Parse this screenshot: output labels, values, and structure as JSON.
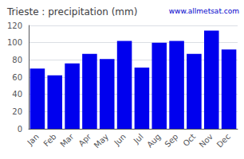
{
  "chart_data": {
    "type": "bar",
    "title": "Trieste : precipitation (mm)",
    "categories": [
      "Jan",
      "Feb",
      "Mar",
      "Apr",
      "May",
      "Jun",
      "Jul",
      "Aug",
      "Sep",
      "Oct",
      "Nov",
      "Dec"
    ],
    "values": [
      70,
      62,
      76,
      87,
      81,
      102,
      71,
      100,
      102,
      87,
      114,
      92
    ],
    "color": "#0000EE",
    "ylim": [
      0,
      120
    ],
    "yticks": [
      0,
      20,
      40,
      60,
      80,
      100,
      120
    ],
    "grid": true,
    "annotations": [
      {
        "text": "www.allmetsat.com",
        "color": "#0000CC"
      }
    ]
  }
}
